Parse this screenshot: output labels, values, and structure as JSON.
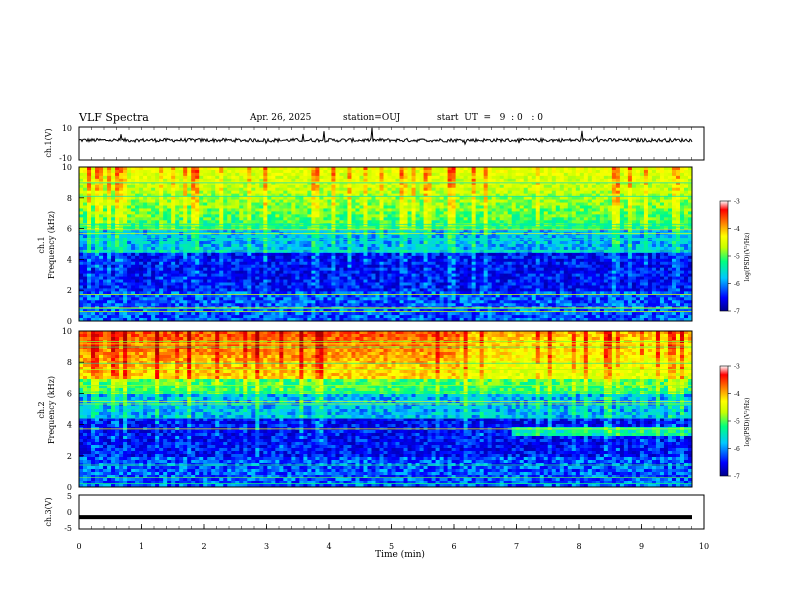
{
  "header": {
    "title": "VLF Spectra",
    "date": "Apr. 26, 2025",
    "station": "station=OUJ",
    "start": "start  UT  =   9  : 0   : 0"
  },
  "chart_data": [
    {
      "type": "line",
      "ylabel": "ch.1(V)",
      "ylim": [
        -10,
        10
      ],
      "yticks": [
        "10",
        "-10"
      ],
      "xlim": [
        0,
        10
      ],
      "series": [
        {
          "values_summary": "noisy waveform centered near 2 V, spikes to ~8 V"
        }
      ],
      "baseline": 2
    },
    {
      "type": "heatmap",
      "ylabel_top": "ch.1",
      "ylabel": "Frequency  (kHz)",
      "ylim": [
        0,
        10
      ],
      "yticks": [
        "0",
        "2",
        "4",
        "6",
        "8",
        "10"
      ],
      "xlim": [
        0,
        10
      ],
      "colorbar": {
        "label": "log(PSD)(V²/Hz)",
        "range": [
          -7,
          -3
        ],
        "ticks": [
          "-3",
          "-4",
          "-5",
          "-6",
          "-7"
        ]
      }
    },
    {
      "type": "heatmap",
      "ylabel_top": "ch.2",
      "ylabel": "Frequency  (kHz)",
      "ylim": [
        0,
        10
      ],
      "yticks": [
        "0",
        "2",
        "4",
        "6",
        "8",
        "10"
      ],
      "xlim": [
        0,
        10
      ],
      "colorbar": {
        "label": "log(PSD)(V²/Hz)",
        "range": [
          -7,
          -3
        ],
        "ticks": [
          "-3",
          "-4",
          "-5",
          "-6",
          "-7"
        ]
      }
    },
    {
      "type": "line",
      "ylabel": "ch.3(V)",
      "ylim": [
        -5,
        5
      ],
      "yticks": [
        "5",
        "0",
        "-5"
      ],
      "xlim": [
        0,
        10
      ],
      "xlabel": "Time  (min)",
      "xticks": [
        "0",
        "1",
        "2",
        "3",
        "4",
        "5",
        "6",
        "7",
        "8",
        "9",
        "10"
      ],
      "series": [
        {
          "values_summary": "flat thick line at about -1.5 V"
        }
      ],
      "baseline": -1.5
    }
  ],
  "colors": {
    "scale": [
      "#00008b",
      "#0000ff",
      "#00c8ff",
      "#00ff80",
      "#c8ff00",
      "#ffff00",
      "#ff8000",
      "#ff0000",
      "#b00000"
    ]
  }
}
